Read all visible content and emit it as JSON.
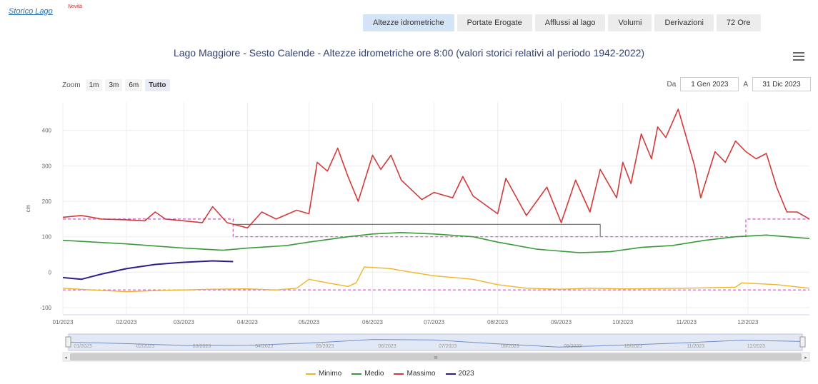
{
  "header": {
    "storico_label": "Storico Lago",
    "novita_badge": "Novità",
    "tabs": [
      {
        "label": "Altezze idrometriche",
        "active": true
      },
      {
        "label": "Portate Erogate"
      },
      {
        "label": "Afflussi al lago"
      },
      {
        "label": "Volumi"
      },
      {
        "label": "Derivazioni"
      },
      {
        "label": "72 Ore"
      }
    ]
  },
  "toolbar": {
    "zoom_label": "Zoom",
    "zoom_buttons": [
      "1m",
      "3m",
      "6m",
      "Tutto"
    ],
    "zoom_selected": "Tutto",
    "from_label": "Da",
    "from_value": "1 Gen 2023",
    "to_label": "A",
    "to_value": "31 Dic 2023"
  },
  "colors": {
    "minimo": "#f0b429",
    "medio": "#3a9a3a",
    "massimo": "#d23a3a",
    "y2023": "#2c1f8c",
    "dashed": "#cc55cc",
    "step": "#777777"
  },
  "chart_data": {
    "type": "line",
    "title": "Lago Maggiore - Sesto Calende - Altezze idrometriche ore 8:00 (valori storici relativi al periodo 1942-2022)",
    "ylabel": "cm",
    "ylim": [
      -120,
      480
    ],
    "yticks": [
      -100,
      0,
      100,
      200,
      300,
      400
    ],
    "x_range": [
      "2023-01-01",
      "2023-12-31"
    ],
    "xtick_labels": [
      "01/2023",
      "02/2023",
      "03/2023",
      "04/2023",
      "05/2023",
      "06/2023",
      "07/2023",
      "08/2023",
      "09/2023",
      "10/2023",
      "11/2023",
      "12/2023"
    ],
    "grid": true,
    "legend_position": "bottom-center",
    "series": [
      {
        "name": "Minimo",
        "points": [
          [
            "2023-01-01",
            -45
          ],
          [
            "2023-01-15",
            -50
          ],
          [
            "2023-02-01",
            -55
          ],
          [
            "2023-02-15",
            -52
          ],
          [
            "2023-03-01",
            -50
          ],
          [
            "2023-03-15",
            -48
          ],
          [
            "2023-04-01",
            -47
          ],
          [
            "2023-04-15",
            -50
          ],
          [
            "2023-04-25",
            -45
          ],
          [
            "2023-05-01",
            -20
          ],
          [
            "2023-05-10",
            -30
          ],
          [
            "2023-05-20",
            -40
          ],
          [
            "2023-05-24",
            -30
          ],
          [
            "2023-05-28",
            15
          ],
          [
            "2023-06-10",
            10
          ],
          [
            "2023-06-20",
            0
          ],
          [
            "2023-07-01",
            -10
          ],
          [
            "2023-07-20",
            -20
          ],
          [
            "2023-08-01",
            -35
          ],
          [
            "2023-08-15",
            -45
          ],
          [
            "2023-09-01",
            -48
          ],
          [
            "2023-09-15",
            -45
          ],
          [
            "2023-10-01",
            -47
          ],
          [
            "2023-11-01",
            -45
          ],
          [
            "2023-11-25",
            -42
          ],
          [
            "2023-11-28",
            -30
          ],
          [
            "2023-12-15",
            -35
          ],
          [
            "2023-12-31",
            -45
          ]
        ]
      },
      {
        "name": "Medio",
        "points": [
          [
            "2023-01-01",
            90
          ],
          [
            "2023-02-01",
            80
          ],
          [
            "2023-03-01",
            68
          ],
          [
            "2023-03-20",
            62
          ],
          [
            "2023-04-01",
            68
          ],
          [
            "2023-04-20",
            75
          ],
          [
            "2023-05-01",
            85
          ],
          [
            "2023-05-20",
            100
          ],
          [
            "2023-06-01",
            108
          ],
          [
            "2023-06-15",
            112
          ],
          [
            "2023-07-01",
            108
          ],
          [
            "2023-07-20",
            100
          ],
          [
            "2023-08-01",
            85
          ],
          [
            "2023-08-20",
            65
          ],
          [
            "2023-09-10",
            55
          ],
          [
            "2023-09-25",
            58
          ],
          [
            "2023-10-10",
            70
          ],
          [
            "2023-10-25",
            75
          ],
          [
            "2023-11-10",
            90
          ],
          [
            "2023-11-25",
            100
          ],
          [
            "2023-12-10",
            105
          ],
          [
            "2023-12-31",
            95
          ]
        ]
      },
      {
        "name": "Massimo",
        "points": [
          [
            "2023-01-01",
            155
          ],
          [
            "2023-01-10",
            160
          ],
          [
            "2023-01-20",
            150
          ],
          [
            "2023-02-01",
            148
          ],
          [
            "2023-02-10",
            145
          ],
          [
            "2023-02-15",
            170
          ],
          [
            "2023-02-20",
            150
          ],
          [
            "2023-03-01",
            145
          ],
          [
            "2023-03-10",
            140
          ],
          [
            "2023-03-15",
            185
          ],
          [
            "2023-03-22",
            140
          ],
          [
            "2023-04-01",
            125
          ],
          [
            "2023-04-08",
            170
          ],
          [
            "2023-04-15",
            150
          ],
          [
            "2023-04-25",
            175
          ],
          [
            "2023-05-01",
            165
          ],
          [
            "2023-05-05",
            310
          ],
          [
            "2023-05-10",
            285
          ],
          [
            "2023-05-15",
            350
          ],
          [
            "2023-05-20",
            270
          ],
          [
            "2023-05-25",
            200
          ],
          [
            "2023-06-01",
            330
          ],
          [
            "2023-06-05",
            290
          ],
          [
            "2023-06-10",
            330
          ],
          [
            "2023-06-15",
            260
          ],
          [
            "2023-06-25",
            205
          ],
          [
            "2023-07-01",
            225
          ],
          [
            "2023-07-10",
            210
          ],
          [
            "2023-07-15",
            270
          ],
          [
            "2023-07-20",
            215
          ],
          [
            "2023-08-01",
            165
          ],
          [
            "2023-08-05",
            265
          ],
          [
            "2023-08-15",
            160
          ],
          [
            "2023-08-25",
            240
          ],
          [
            "2023-09-01",
            140
          ],
          [
            "2023-09-08",
            260
          ],
          [
            "2023-09-15",
            170
          ],
          [
            "2023-09-20",
            290
          ],
          [
            "2023-09-28",
            210
          ],
          [
            "2023-10-01",
            310
          ],
          [
            "2023-10-05",
            250
          ],
          [
            "2023-10-10",
            390
          ],
          [
            "2023-10-15",
            320
          ],
          [
            "2023-10-18",
            410
          ],
          [
            "2023-10-22",
            380
          ],
          [
            "2023-10-28",
            460
          ],
          [
            "2023-11-05",
            300
          ],
          [
            "2023-11-08",
            210
          ],
          [
            "2023-11-15",
            340
          ],
          [
            "2023-11-20",
            310
          ],
          [
            "2023-11-25",
            370
          ],
          [
            "2023-11-30",
            340
          ],
          [
            "2023-12-05",
            320
          ],
          [
            "2023-12-10",
            335
          ],
          [
            "2023-12-15",
            240
          ],
          [
            "2023-12-20",
            170
          ],
          [
            "2023-12-25",
            170
          ],
          [
            "2023-12-31",
            150
          ]
        ]
      },
      {
        "name": "2023",
        "points": [
          [
            "2023-01-01",
            -15
          ],
          [
            "2023-01-10",
            -20
          ],
          [
            "2023-01-20",
            -5
          ],
          [
            "2023-02-01",
            10
          ],
          [
            "2023-02-15",
            22
          ],
          [
            "2023-03-01",
            28
          ],
          [
            "2023-03-08",
            30
          ],
          [
            "2023-03-15",
            32
          ],
          [
            "2023-03-25",
            30
          ]
        ]
      }
    ],
    "reference_levels": [
      {
        "points": [
          [
            "2023-01-01",
            150
          ],
          [
            "2023-03-25",
            150
          ],
          [
            "2023-03-25",
            100
          ],
          [
            "2023-11-30",
            100
          ],
          [
            "2023-11-30",
            150
          ],
          [
            "2023-12-31",
            150
          ]
        ]
      },
      {
        "points": [
          [
            "2023-01-01",
            -50
          ],
          [
            "2023-12-31",
            -50
          ]
        ]
      },
      {
        "points": [
          [
            "2023-03-25",
            135
          ],
          [
            "2023-09-20",
            135
          ],
          [
            "2023-09-20",
            100
          ]
        ]
      }
    ],
    "navigator": {
      "xtick_labels": [
        "01/2023",
        "02/2023",
        "03/2023",
        "04/2023",
        "05/2023",
        "06/2023",
        "07/2023",
        "08/2023",
        "09/2023",
        "10/2023",
        "11/2023",
        "12/2023"
      ],
      "points": [
        [
          "2023-01-01",
          90
        ],
        [
          "2023-02-01",
          80
        ],
        [
          "2023-03-01",
          68
        ],
        [
          "2023-04-01",
          70
        ],
        [
          "2023-05-01",
          85
        ],
        [
          "2023-06-01",
          108
        ],
        [
          "2023-07-01",
          105
        ],
        [
          "2023-08-01",
          80
        ],
        [
          "2023-09-01",
          58
        ],
        [
          "2023-10-01",
          70
        ],
        [
          "2023-11-01",
          85
        ],
        [
          "2023-12-01",
          103
        ],
        [
          "2023-12-31",
          95
        ]
      ]
    }
  }
}
